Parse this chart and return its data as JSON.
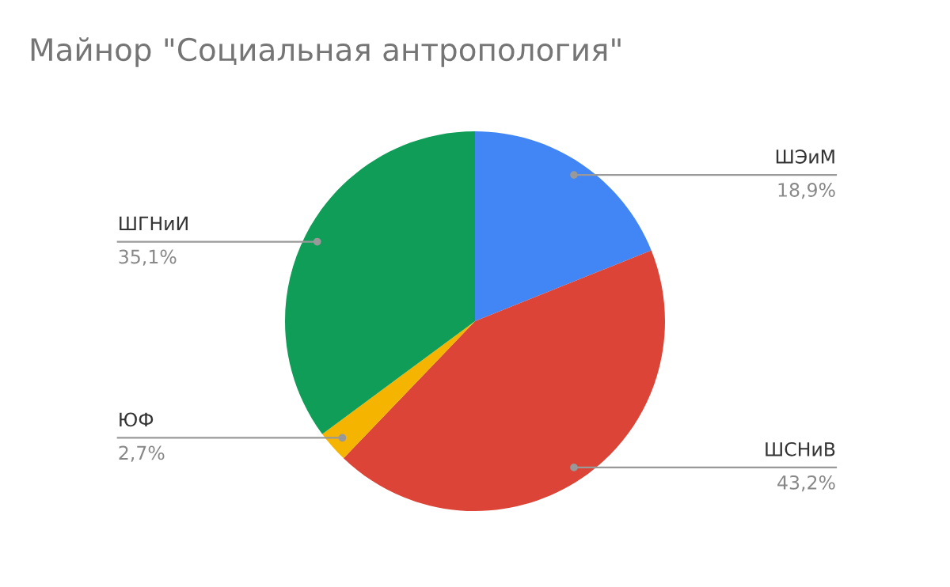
{
  "chart_data": {
    "type": "pie",
    "title": "Майнор \"Социальная антропология\"",
    "categories": [
      "ШЭиМ",
      "ШСНиВ",
      "ЮФ",
      "ШГНиИ"
    ],
    "values": [
      18.9,
      43.2,
      2.7,
      35.1
    ],
    "value_labels": [
      "18,9%",
      "43,2%",
      "2,7%",
      "35,1%"
    ],
    "colors": [
      "#4285f4",
      "#db4437",
      "#f4b400",
      "#0f9d58"
    ]
  }
}
